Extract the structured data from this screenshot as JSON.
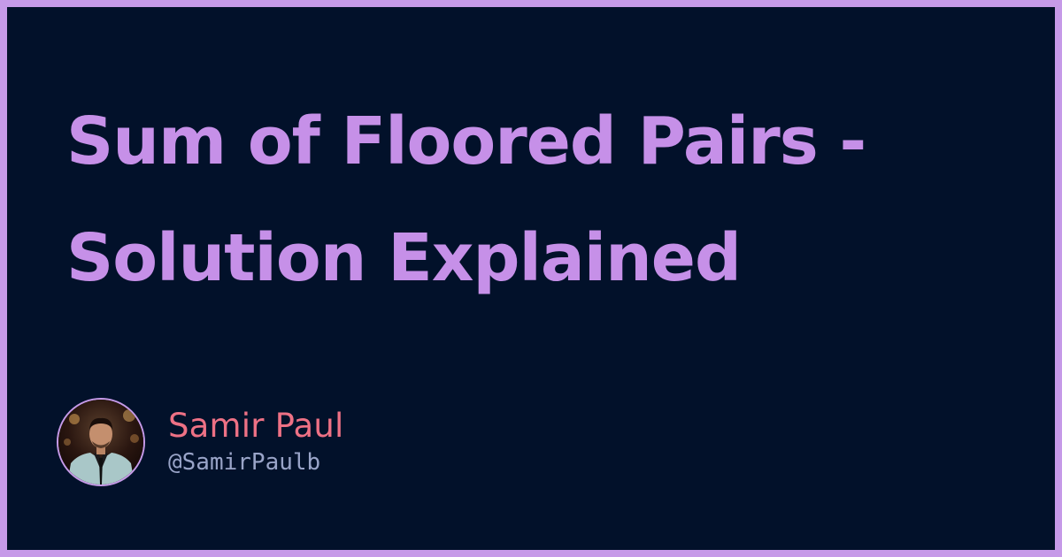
{
  "title": {
    "line1": "Sum of Floored Pairs -",
    "line2": "Solution Explained"
  },
  "author": {
    "name": "Samir Paul",
    "handle": "@SamirPaulb"
  },
  "colors": {
    "frame": "#c69ae8",
    "background": "#02112a",
    "title": "#c690e8",
    "name": "#ee7185",
    "handle": "#99a4c8"
  }
}
